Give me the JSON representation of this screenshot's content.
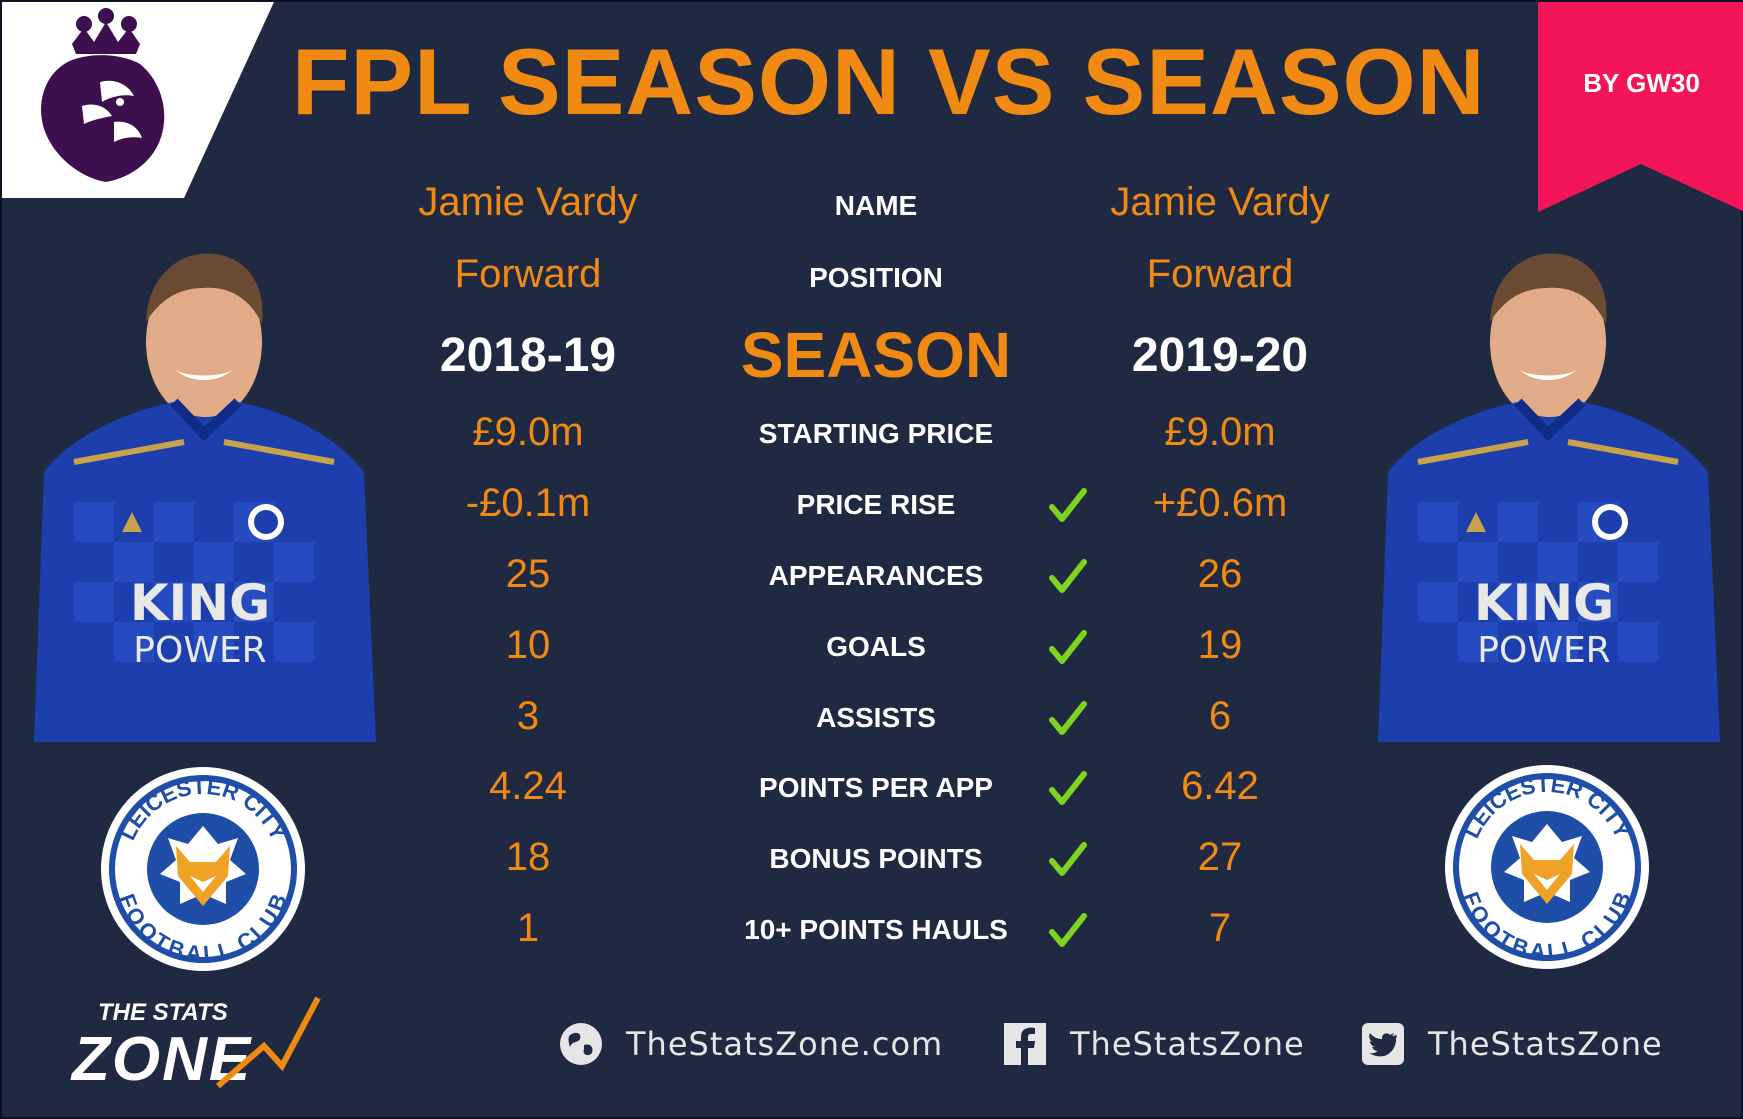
{
  "header": {
    "title": "FPL SEASON VS SEASON",
    "badge": "BY GW30"
  },
  "labels": {
    "name": "NAME",
    "position": "POSITION",
    "season": "SEASON"
  },
  "left": {
    "name": "Jamie Vardy",
    "position": "Forward",
    "season": "2018-19"
  },
  "right": {
    "name": "Jamie Vardy",
    "position": "Forward",
    "season": "2019-20"
  },
  "stats": [
    {
      "label": "STARTING PRICE",
      "left": "£9.0m",
      "right": "£9.0m",
      "check": false
    },
    {
      "label": "PRICE RISE",
      "left": "-£0.1m",
      "right": "+£0.6m",
      "check": true
    },
    {
      "label": "APPEARANCES",
      "left": "25",
      "right": "26",
      "check": true
    },
    {
      "label": "GOALS",
      "left": "10",
      "right": "19",
      "check": true
    },
    {
      "label": "ASSISTS",
      "left": "3",
      "right": "6",
      "check": true
    },
    {
      "label": "POINTS PER APP",
      "left": "4.24",
      "right": "6.42",
      "check": true
    },
    {
      "label": "BONUS POINTS",
      "left": "18",
      "right": "27",
      "check": true
    },
    {
      "label": "10+ POINTS HAULS",
      "left": "1",
      "right": "7",
      "check": true
    }
  ],
  "images": {
    "jersey_left": {
      "text_line1": "KING",
      "text_line2": "POWER"
    },
    "jersey_right": {
      "text_line1": "KING",
      "text_line2": "POWER"
    },
    "crest_text_top": "LEICESTER CITY",
    "crest_text_bottom": "FOOTBALL CLUB"
  },
  "footer": {
    "logo_top": "THE STATS",
    "logo_bottom": "ZONE",
    "website": "TheStatsZone.com",
    "facebook": "TheStatsZone",
    "twitter": "TheStatsZone",
    "website_icon": "globe-icon",
    "facebook_icon": "facebook-icon",
    "twitter_icon": "twitter-icon"
  },
  "colors": {
    "background": "#1f2942",
    "accent": "#f08a12",
    "ribbon": "#f4145a",
    "check": "#7ed321",
    "pl_purple": "#3d0f4f"
  }
}
